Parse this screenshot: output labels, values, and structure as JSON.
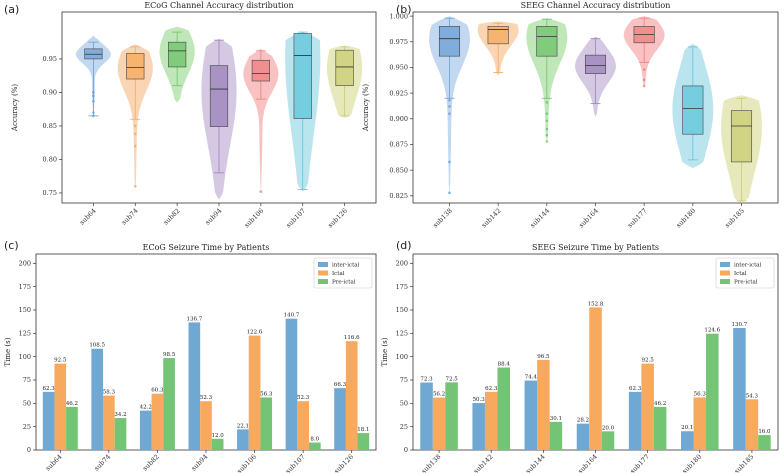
{
  "panel_labels": [
    "(a)",
    "(b)",
    "(c)",
    "(d)"
  ],
  "colors": {
    "violin": [
      "#aecbeb",
      "#f9c79a",
      "#a9dfa0",
      "#c7b6d9",
      "#f5aeae",
      "#a3dcea",
      "#dfe2a6"
    ],
    "box": [
      "#6a9fd4",
      "#f5a85a",
      "#6cc26a",
      "#9a82bb",
      "#ee7d7d",
      "#5fc4d9",
      "#c9cc72"
    ],
    "inter": "#6fa8d2",
    "ictal": "#f7a95e",
    "pre": "#74c476"
  },
  "chart_data": [
    {
      "type": "violin",
      "title": "ECoG Channel Accuracy distribution",
      "ylabel": "Accuracy (%)",
      "xlabel": "",
      "ylim": [
        0.735,
        1.02
      ],
      "yticks": [
        0.75,
        0.8,
        0.85,
        0.9,
        0.95
      ],
      "categories": [
        "sub64",
        "sub74",
        "sub82",
        "sub94",
        "sub106",
        "sub107",
        "sub126"
      ],
      "distributions": [
        {
          "min": 0.865,
          "q1": 0.95,
          "median": 0.957,
          "q3": 0.965,
          "max": 0.975,
          "vmin": 0.86,
          "vmax": 0.985,
          "outliers": [
            0.9,
            0.895,
            0.887,
            0.87,
            0.865
          ]
        },
        {
          "min": 0.86,
          "q1": 0.92,
          "median": 0.937,
          "q3": 0.958,
          "max": 0.968,
          "vmin": 0.755,
          "vmax": 0.972,
          "outliers": [
            0.85,
            0.838,
            0.82,
            0.76
          ]
        },
        {
          "min": 0.91,
          "q1": 0.938,
          "median": 0.962,
          "q3": 0.975,
          "max": 0.99,
          "vmin": 0.885,
          "vmax": 0.998,
          "outliers": []
        },
        {
          "min": 0.78,
          "q1": 0.849,
          "median": 0.905,
          "q3": 0.94,
          "max": 0.978,
          "vmin": 0.74,
          "vmax": 0.98,
          "outliers": []
        },
        {
          "min": 0.89,
          "q1": 0.917,
          "median": 0.928,
          "q3": 0.948,
          "max": 0.962,
          "vmin": 0.75,
          "vmax": 0.965,
          "outliers": [
            0.752
          ]
        },
        {
          "min": 0.755,
          "q1": 0.861,
          "median": 0.955,
          "q3": 0.988,
          "max": 0.99,
          "vmin": 0.752,
          "vmax": 0.99,
          "outliers": []
        },
        {
          "min": 0.865,
          "q1": 0.91,
          "median": 0.938,
          "q3": 0.963,
          "max": 0.968,
          "vmin": 0.862,
          "vmax": 0.97,
          "outliers": []
        }
      ]
    },
    {
      "type": "violin",
      "title": "SEEG Channel Accuracy distribution",
      "ylabel": "Accuracy (%)",
      "xlabel": "",
      "ylim": [
        0.818,
        1.004
      ],
      "yticks": [
        0.825,
        0.85,
        0.875,
        0.9,
        0.925,
        0.95,
        0.975,
        1.0
      ],
      "categories": [
        "sub138",
        "sub142",
        "sub144",
        "sub164",
        "sub177",
        "sub180",
        "sub185"
      ],
      "distributions": [
        {
          "min": 0.92,
          "q1": 0.961,
          "median": 0.978,
          "q3": 0.99,
          "max": 0.998,
          "vmin": 0.828,
          "vmax": 1.0,
          "outliers": [
            0.918,
            0.912,
            0.905,
            0.858,
            0.828
          ]
        },
        {
          "min": 0.945,
          "q1": 0.973,
          "median": 0.987,
          "q3": 0.99,
          "max": 0.993,
          "vmin": 0.942,
          "vmax": 0.995,
          "outliers": []
        },
        {
          "min": 0.92,
          "q1": 0.961,
          "median": 0.98,
          "q3": 0.99,
          "max": 0.997,
          "vmin": 0.878,
          "vmax": 0.998,
          "outliers": [
            0.916,
            0.905,
            0.898,
            0.89,
            0.884,
            0.878
          ]
        },
        {
          "min": 0.915,
          "q1": 0.944,
          "median": 0.952,
          "q3": 0.962,
          "max": 0.978,
          "vmin": 0.902,
          "vmax": 0.98,
          "outliers": []
        },
        {
          "min": 0.955,
          "q1": 0.974,
          "median": 0.982,
          "q3": 0.99,
          "max": 0.998,
          "vmin": 0.932,
          "vmax": 1.0,
          "outliers": [
            0.948,
            0.938,
            0.932
          ]
        },
        {
          "min": 0.86,
          "q1": 0.885,
          "median": 0.91,
          "q3": 0.932,
          "max": 0.97,
          "vmin": 0.852,
          "vmax": 0.973,
          "outliers": []
        },
        {
          "min": 0.82,
          "q1": 0.858,
          "median": 0.893,
          "q3": 0.908,
          "max": 0.92,
          "vmin": 0.818,
          "vmax": 0.923,
          "outliers": []
        }
      ]
    },
    {
      "type": "bar",
      "title": "ECoG Seizure Time by Patients",
      "ylabel": "Time (s)",
      "xlabel": "",
      "ylim": [
        0,
        210
      ],
      "yticks": [
        0,
        25,
        50,
        75,
        100,
        125,
        150,
        175,
        200
      ],
      "categories": [
        "sub64",
        "sub74",
        "sub82",
        "sub94",
        "sub106",
        "sub107",
        "sub126"
      ],
      "series": [
        {
          "name": "inter-ictal",
          "values": [
            62.3,
            108.5,
            42.2,
            136.7,
            22.1,
            140.7,
            66.3
          ]
        },
        {
          "name": "Ictal",
          "values": [
            92.5,
            58.3,
            60.3,
            52.3,
            122.6,
            52.3,
            116.6
          ]
        },
        {
          "name": "Pre-ictal",
          "values": [
            46.2,
            34.2,
            98.5,
            12.0,
            56.3,
            8.0,
            18.1
          ]
        }
      ],
      "legend": "top-right"
    },
    {
      "type": "bar",
      "title": "SEEG Seizure Time by Patients",
      "ylabel": "Time (s)",
      "xlabel": "",
      "ylim": [
        0,
        210
      ],
      "yticks": [
        0,
        25,
        50,
        75,
        100,
        125,
        150,
        175,
        200
      ],
      "categories": [
        "sub138",
        "sub142",
        "sub144",
        "sub164",
        "sub177",
        "sub180",
        "sub185"
      ],
      "series": [
        {
          "name": "inter-ictal",
          "values": [
            72.3,
            50.3,
            74.4,
            28.2,
            62.3,
            20.1,
            130.7
          ]
        },
        {
          "name": "Ictal",
          "values": [
            56.2,
            62.3,
            96.5,
            152.8,
            92.5,
            56.3,
            54.3
          ]
        },
        {
          "name": "Pre-ictal",
          "values": [
            72.5,
            88.4,
            30.1,
            20.0,
            46.2,
            124.6,
            16.0
          ]
        }
      ],
      "legend": "top-right"
    }
  ]
}
